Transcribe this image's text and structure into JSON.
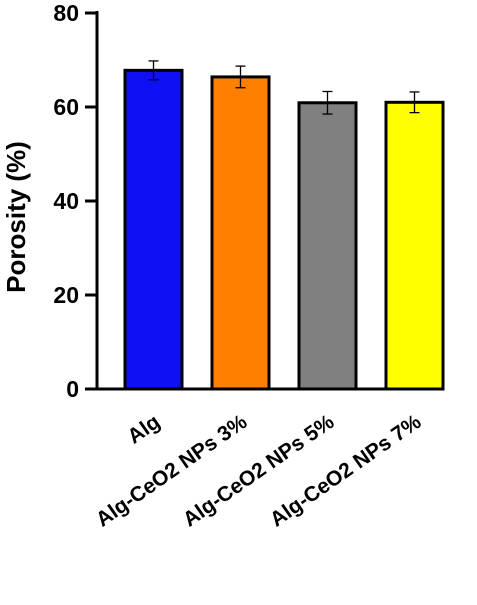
{
  "chart_data": {
    "type": "bar",
    "ylabel": "Porosity (%)",
    "xlabel": "",
    "title": "",
    "ylim": [
      0,
      80
    ],
    "yticks": [
      0,
      20,
      40,
      60,
      80
    ],
    "yticklabels": [
      "0",
      "20",
      "40",
      "60",
      "80"
    ],
    "categories": [
      "Alg",
      "Alg-CeO2 NPs 3%",
      "Alg-CeO2 NPs 5%",
      "Alg-CeO2 NPs 7%"
    ],
    "values": [
      67.8,
      66.4,
      60.9,
      61.0
    ],
    "errors": [
      2.0,
      2.3,
      2.4,
      2.2
    ],
    "colors": [
      "#1010f5",
      "#ff7f00",
      "#808080",
      "#ffff00"
    ],
    "grid": false,
    "legend": "none"
  }
}
